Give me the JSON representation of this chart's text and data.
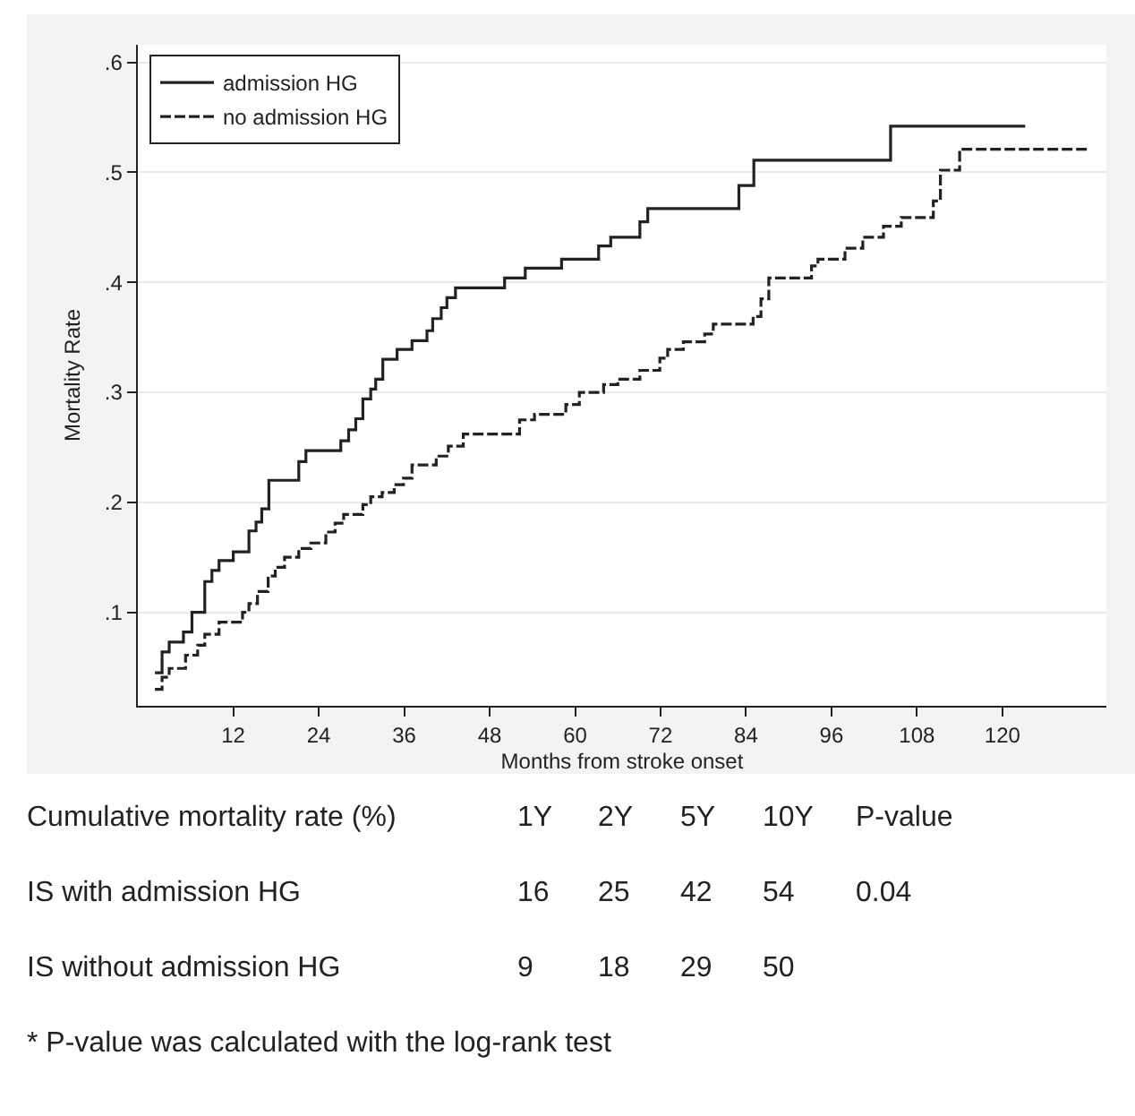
{
  "chart_data": {
    "type": "step",
    "xlabel": "Months from stroke onset",
    "ylabel": "Mortality Rate",
    "xlim": [
      -1.4,
      134.6
    ],
    "ylim": [
      0.015,
      0.616
    ],
    "xticks": [
      12,
      24,
      36,
      48,
      60,
      72,
      84,
      96,
      108,
      120
    ],
    "yticks": [
      {
        "value": 0.1,
        "label": ".1"
      },
      {
        "value": 0.2,
        "label": ".2"
      },
      {
        "value": 0.3,
        "label": ".3"
      },
      {
        "value": 0.4,
        "label": ".4"
      },
      {
        "value": 0.5,
        "label": ".5"
      },
      {
        "value": 0.6,
        "label": ".6"
      }
    ],
    "grid": "y",
    "legend": "top left",
    "marker": "none",
    "series": [
      {
        "name": "admission HG",
        "color": "#222222",
        "line_style": "solid",
        "x": [
          1,
          2,
          3,
          5,
          6.2,
          8,
          9,
          10,
          12,
          14.2,
          15.2,
          16,
          17,
          21.2,
          22.2,
          27.1,
          28.2,
          29.2,
          30.2,
          31.3,
          32,
          33,
          35,
          37.1,
          39.2,
          40,
          41.2,
          42,
          43.2,
          50.1,
          53,
          58.1,
          63.3,
          65,
          69.1,
          70.2,
          83,
          85.1,
          104.3,
          123.2
        ],
        "values": [
          0.045,
          0.064,
          0.073,
          0.082,
          0.1,
          0.128,
          0.138,
          0.147,
          0.155,
          0.174,
          0.182,
          0.194,
          0.22,
          0.237,
          0.247,
          0.256,
          0.266,
          0.276,
          0.294,
          0.303,
          0.312,
          0.33,
          0.339,
          0.347,
          0.356,
          0.367,
          0.377,
          0.386,
          0.395,
          0.404,
          0.413,
          0.421,
          0.433,
          0.441,
          0.455,
          0.467,
          0.488,
          0.511,
          0.542,
          0.542
        ]
      },
      {
        "name": "no admission HG",
        "color": "#222222",
        "line_style": "dashed",
        "x": [
          1,
          2,
          3,
          5.3,
          7,
          8,
          10,
          13.3,
          14.2,
          15.4,
          16.9,
          17.9,
          19.2,
          21.2,
          22.9,
          25,
          26.3,
          27.5,
          30.2,
          31.3,
          32.9,
          34.6,
          35.9,
          37.1,
          40.5,
          42.2,
          44.3,
          52.2,
          54.3,
          58.7,
          60.6,
          64,
          66,
          69.1,
          71.9,
          73,
          75.2,
          78.2,
          79.4,
          85,
          86.1,
          87.2,
          93.2,
          94.1,
          97.9,
          100.4,
          103.3,
          105.8,
          110.3,
          111.3,
          114,
          132.2
        ],
        "values": [
          0.03,
          0.041,
          0.049,
          0.061,
          0.07,
          0.08,
          0.091,
          0.1,
          0.108,
          0.119,
          0.133,
          0.141,
          0.15,
          0.158,
          0.163,
          0.173,
          0.181,
          0.189,
          0.198,
          0.205,
          0.209,
          0.216,
          0.222,
          0.234,
          0.242,
          0.251,
          0.262,
          0.275,
          0.28,
          0.289,
          0.3,
          0.307,
          0.312,
          0.32,
          0.331,
          0.339,
          0.346,
          0.353,
          0.362,
          0.369,
          0.385,
          0.404,
          0.415,
          0.421,
          0.431,
          0.441,
          0.451,
          0.459,
          0.474,
          0.502,
          0.521,
          0.521
        ]
      }
    ],
    "annotations": [
      "Cumulative mortality rate (%)",
      "1Y",
      "2Y",
      "5Y",
      "10Y",
      "P-value",
      "IS with admission HG",
      "16",
      "25",
      "42",
      "54",
      "0.04",
      "IS without admission HG",
      "9",
      "18",
      "29",
      "50",
      "* P-value was calculated with the log-rank test"
    ]
  }
}
